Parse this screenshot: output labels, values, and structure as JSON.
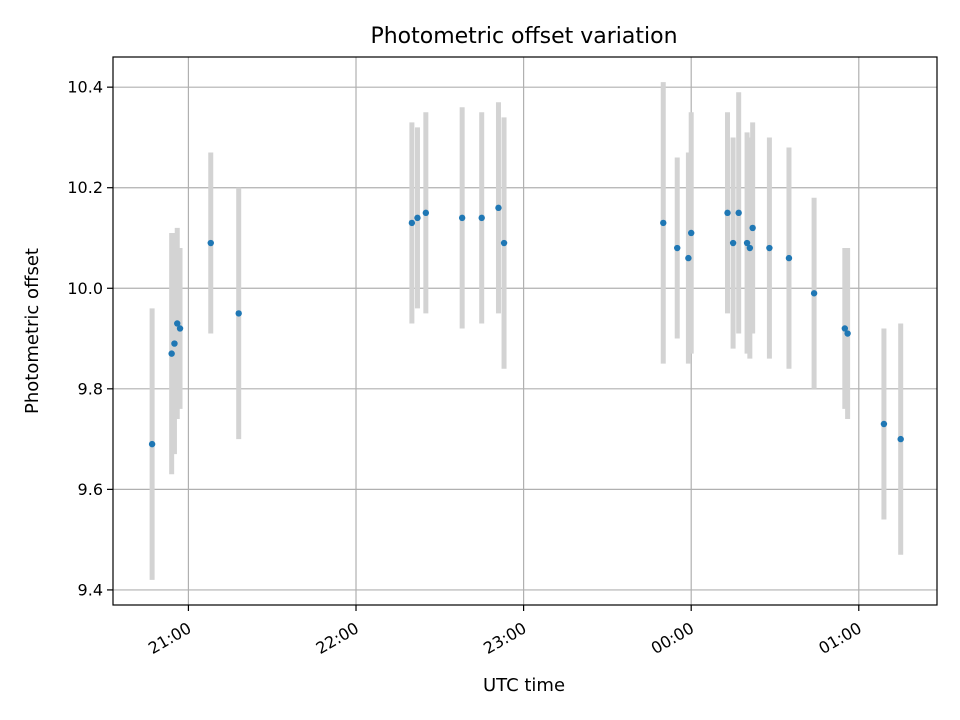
{
  "chart_data": {
    "type": "scatter",
    "title": "Photometric offset variation",
    "xlabel": "UTC time",
    "ylabel": "Photometric offset",
    "x_unit": "time (UTC), axis spans 20:33 to 01:28",
    "xlim": [
      "20:33",
      "01:28"
    ],
    "ylim": [
      9.37,
      10.46
    ],
    "x_ticks": [
      "21:00",
      "22:00",
      "23:00",
      "00:00",
      "01:00"
    ],
    "y_ticks": [
      9.4,
      9.6,
      9.8,
      10.0,
      10.2,
      10.4
    ],
    "y_tick_labels": [
      "9.4",
      "9.6",
      "9.8",
      "10.0",
      "10.2",
      "10.4"
    ],
    "grid": true,
    "point_color": "#1f77b4",
    "errorbar_color": "#d3d3d3",
    "points": [
      {
        "time": "20:47",
        "y": 9.69,
        "err": 0.27
      },
      {
        "time": "20:54",
        "y": 9.87,
        "err": 0.24
      },
      {
        "time": "20:55",
        "y": 9.89,
        "err": 0.22
      },
      {
        "time": "20:56",
        "y": 9.93,
        "err": 0.19
      },
      {
        "time": "20:57",
        "y": 9.92,
        "err": 0.16
      },
      {
        "time": "21:08",
        "y": 10.09,
        "err": 0.18
      },
      {
        "time": "21:18",
        "y": 9.95,
        "err": 0.25
      },
      {
        "time": "22:20",
        "y": 10.13,
        "err": 0.2
      },
      {
        "time": "22:22",
        "y": 10.14,
        "err": 0.18
      },
      {
        "time": "22:25",
        "y": 10.15,
        "err": 0.2
      },
      {
        "time": "22:38",
        "y": 10.14,
        "err": 0.22
      },
      {
        "time": "22:45",
        "y": 10.14,
        "err": 0.21
      },
      {
        "time": "22:51",
        "y": 10.16,
        "err": 0.21
      },
      {
        "time": "22:53",
        "y": 10.09,
        "err": 0.25
      },
      {
        "time": "23:50",
        "y": 10.13,
        "err": 0.28
      },
      {
        "time": "23:55",
        "y": 10.08,
        "err": 0.18
      },
      {
        "time": "23:59",
        "y": 10.06,
        "err": 0.21
      },
      {
        "time": "00:00",
        "y": 10.11,
        "err": 0.24
      },
      {
        "time": "00:13",
        "y": 10.15,
        "err": 0.2
      },
      {
        "time": "00:15",
        "y": 10.09,
        "err": 0.21
      },
      {
        "time": "00:17",
        "y": 10.15,
        "err": 0.24
      },
      {
        "time": "00:20",
        "y": 10.09,
        "err": 0.22
      },
      {
        "time": "00:21",
        "y": 10.08,
        "err": 0.22
      },
      {
        "time": "00:22",
        "y": 10.12,
        "err": 0.21
      },
      {
        "time": "00:28",
        "y": 10.08,
        "err": 0.22
      },
      {
        "time": "00:35",
        "y": 10.06,
        "err": 0.22
      },
      {
        "time": "00:44",
        "y": 9.99,
        "err": 0.19
      },
      {
        "time": "00:55",
        "y": 9.92,
        "err": 0.16
      },
      {
        "time": "00:56",
        "y": 9.91,
        "err": 0.17
      },
      {
        "time": "01:09",
        "y": 9.73,
        "err": 0.19
      },
      {
        "time": "01:15",
        "y": 9.7,
        "err": 0.23
      }
    ]
  }
}
